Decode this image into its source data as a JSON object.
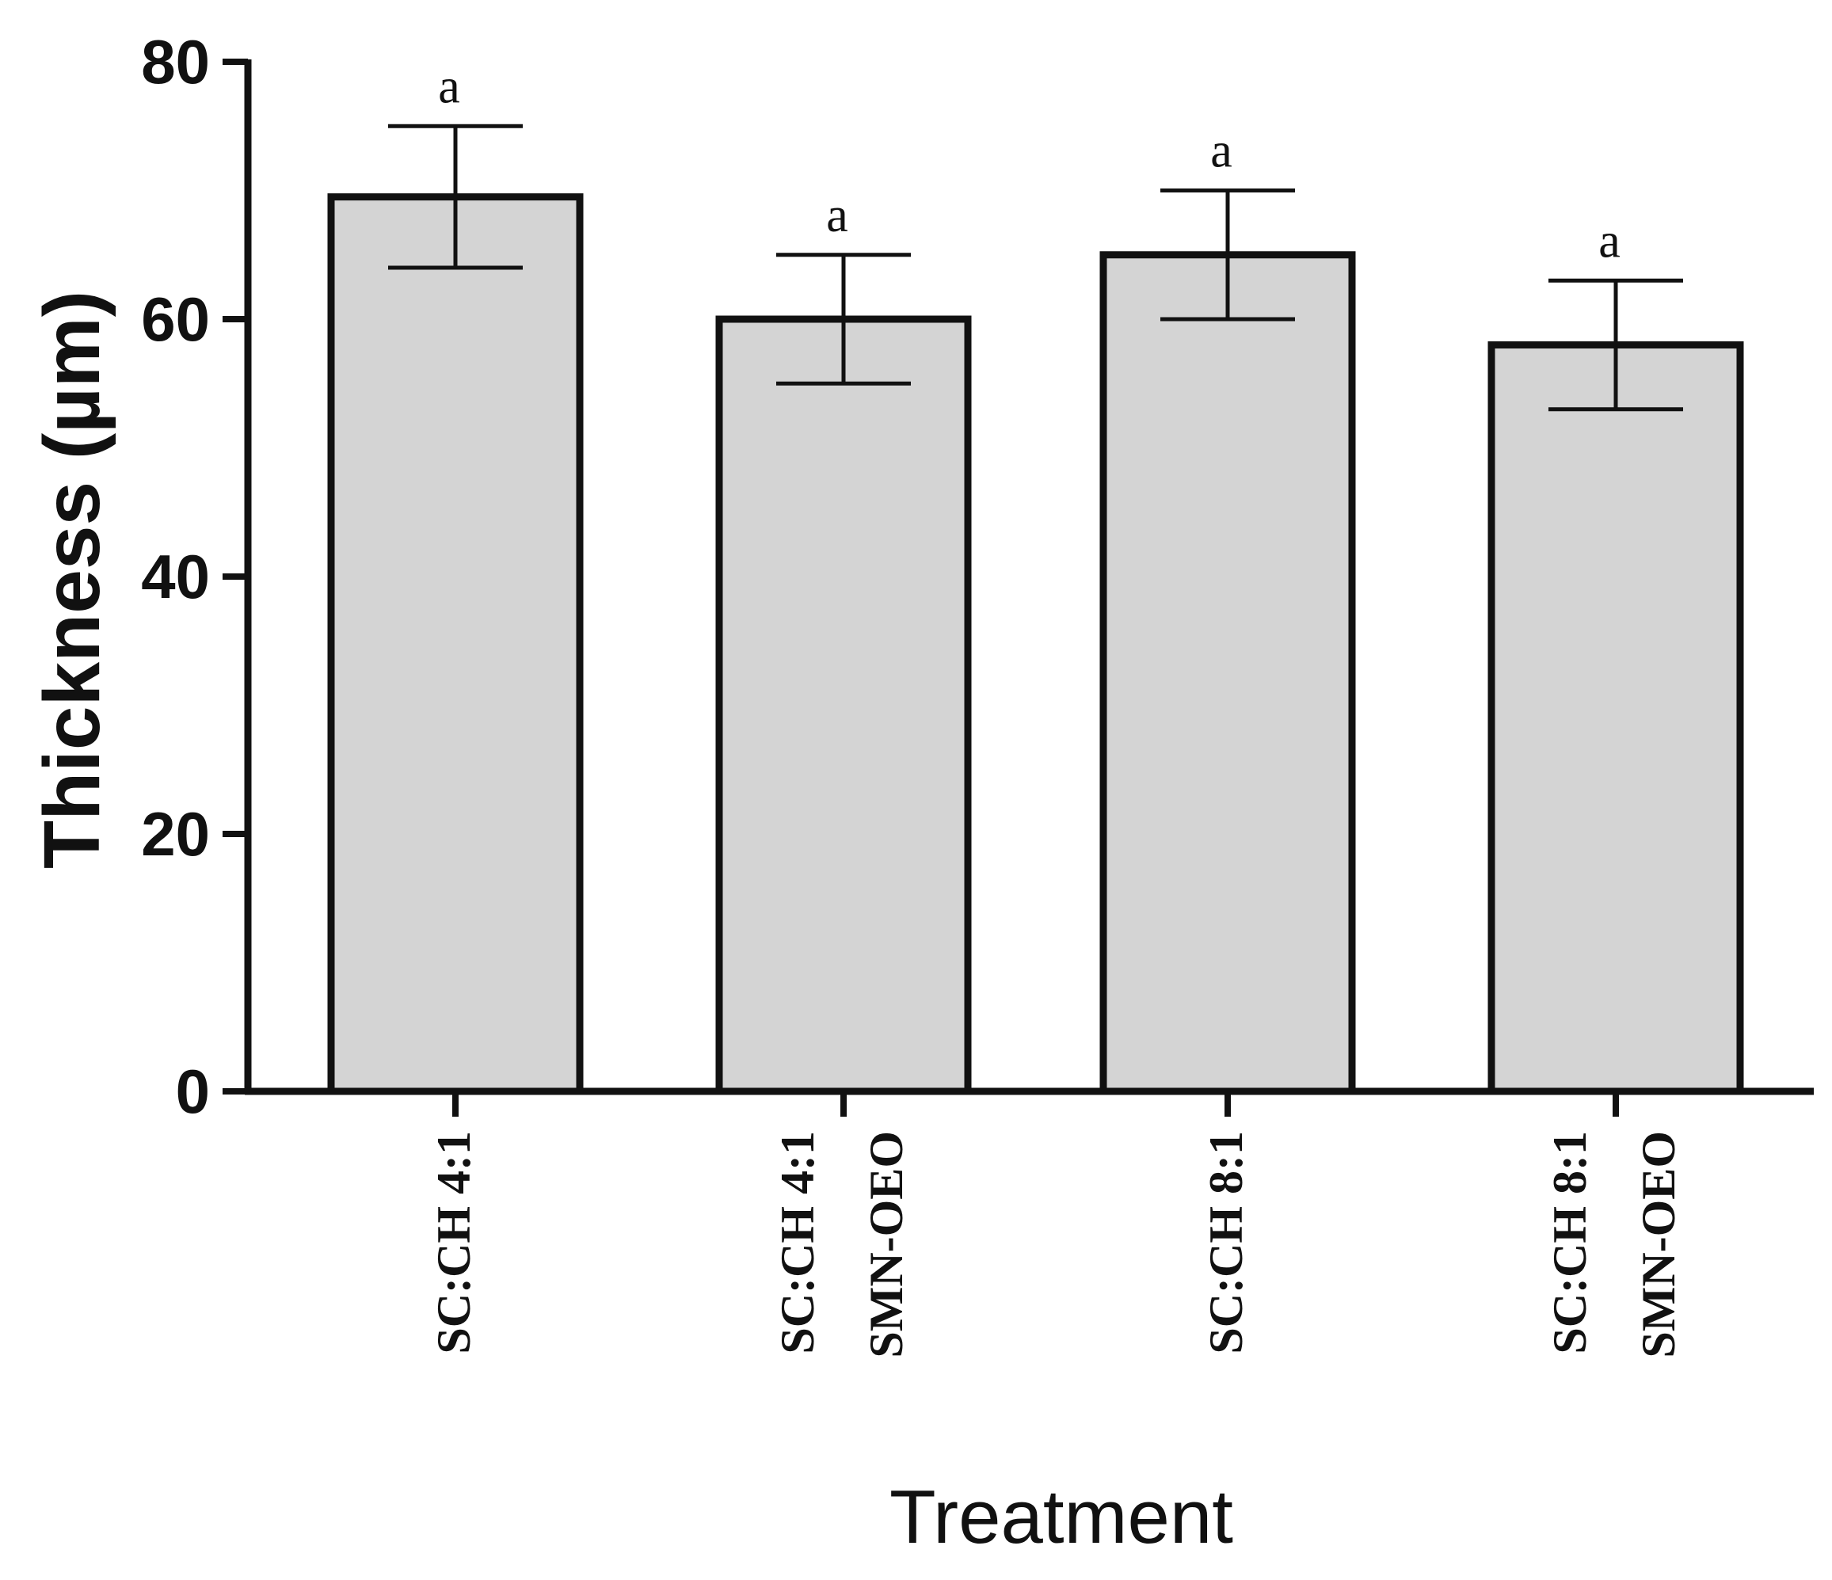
{
  "chart_data": {
    "type": "bar",
    "title": "",
    "xlabel": "Treatment",
    "ylabel": "Thickness (µm)",
    "ylim": [
      0,
      80
    ],
    "yticks": [
      "0",
      "20",
      "40",
      "60",
      "80"
    ],
    "categories": [
      [
        "SC:CH 4:1"
      ],
      [
        "SC:CH 4:1",
        "SMN-OEO"
      ],
      [
        "SC:CH 8:1"
      ],
      [
        "SC:CH 8:1",
        "SMN-OEO"
      ]
    ],
    "values": [
      69.5,
      60,
      65,
      58
    ],
    "errors": [
      5.5,
      5,
      5,
      5
    ],
    "significance": [
      "a",
      "a",
      "a",
      "a"
    ],
    "colors": {
      "bar_fill": "#d4d4d4",
      "bar_stroke": "#111111",
      "axis": "#111111"
    }
  }
}
